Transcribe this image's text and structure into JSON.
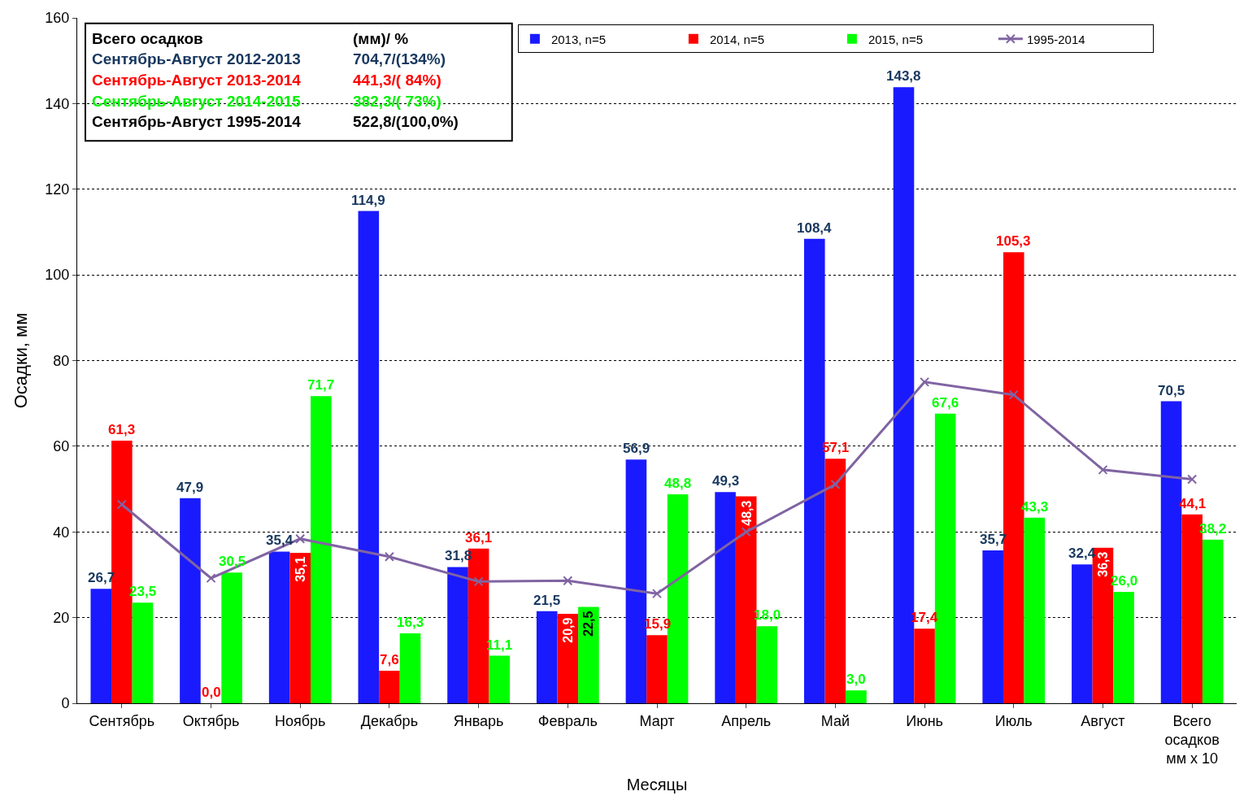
{
  "chart_data": {
    "type": "bar",
    "xlabel": "Месяцы",
    "ylabel": "Осадки, мм",
    "categories": [
      "Сентябрь",
      "Октябрь",
      "Ноябрь",
      "Декабрь",
      "Январь",
      "Февраль",
      "Март",
      "Апрель",
      "Май",
      "Июнь",
      "Июль",
      "Август",
      "Всего осадков мм x 10"
    ],
    "series": [
      {
        "name": "2013, n=5",
        "color": "#1a1aff",
        "values": [
          26.7,
          47.9,
          35.4,
          114.9,
          31.8,
          21.5,
          56.9,
          49.3,
          108.4,
          143.8,
          35.7,
          32.4,
          70.5
        ],
        "value_labels": [
          "26,7",
          "47,9",
          "35,4",
          "114,9",
          "31,8",
          "21,5",
          "56,9",
          "49,3",
          "108,4",
          "143,8",
          "35,7",
          "32,4",
          "70,5"
        ]
      },
      {
        "name": "2014, n=5",
        "color": "#ff0000",
        "values": [
          61.3,
          0.0,
          35.1,
          7.6,
          36.1,
          20.9,
          15.9,
          48.3,
          57.1,
          17.4,
          105.3,
          36.3,
          44.1
        ],
        "value_labels": [
          "61,3",
          "0,0",
          "35,1",
          "7,6",
          "36,1",
          "20,9",
          "15,9",
          "48,3",
          "57,1",
          "17,4",
          "105,3",
          "36,3",
          "44,1"
        ]
      },
      {
        "name": "2015, n=5",
        "color": "#00ff00",
        "values": [
          23.5,
          30.5,
          71.7,
          16.3,
          11.1,
          22.5,
          48.8,
          18.0,
          3.0,
          67.6,
          43.3,
          26.0,
          38.2
        ],
        "value_labels": [
          "23,5",
          "30,5",
          "71,7",
          "16,3",
          "11,1",
          "22,5",
          "48,8",
          "18,0",
          "3,0",
          "67,6",
          "43,3",
          "26,0",
          "38,2"
        ]
      },
      {
        "name": "1995-2014",
        "type": "line",
        "color": "#8064a2",
        "marker": "cross",
        "values": [
          46.4,
          29.2,
          38.4,
          34.2,
          28.4,
          28.6,
          25.6,
          40.0,
          51.1,
          75.0,
          72.0,
          54.5,
          52.3
        ]
      }
    ],
    "ylim": [
      0,
      160
    ],
    "yticks": [
      0,
      20,
      40,
      60,
      80,
      100,
      120,
      140,
      160
    ],
    "grid": "y",
    "legend": "top",
    "annotations": [
      "Всего осадков",
      "(мм)/ %",
      "Сентябрь-Август 2012-2013",
      "704,7/(134%)",
      "Сентябрь-Август 2013-2014",
      "441,3/( 84%)",
      "Сентябрь-Август 2014-2015",
      "382,3/( 73%)",
      "Сентябрь-Август 1995-2014",
      "522,8/(100,0%)"
    ]
  }
}
